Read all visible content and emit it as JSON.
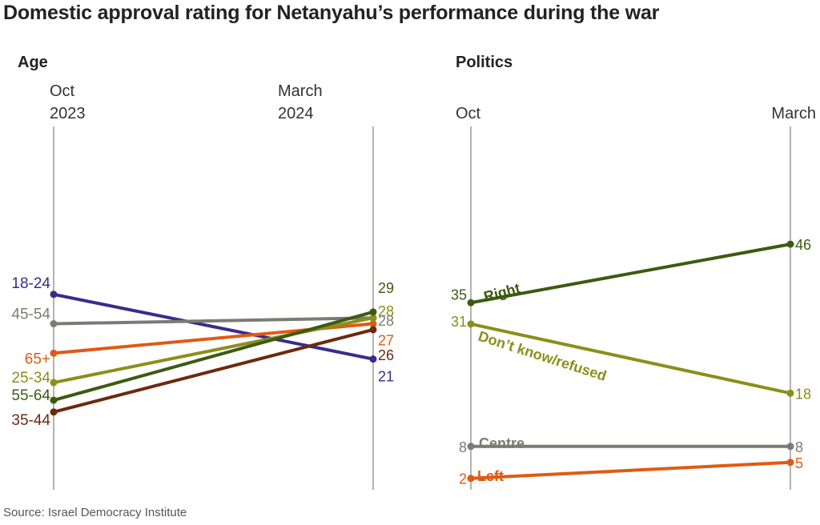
{
  "title": "Domestic approval rating for Netanyahu’s performance during the war",
  "source": "Source: Israel Democracy Institute",
  "chart_data": [
    {
      "type": "line",
      "title": "Age",
      "x": [
        [
          "Oct",
          "2023"
        ],
        [
          "March",
          "2024"
        ]
      ],
      "series": [
        {
          "name": "18-24",
          "values": [
            32,
            21
          ],
          "color": "#3a2b8c"
        },
        {
          "name": "45-54",
          "values": [
            27,
            28
          ],
          "color": "#7b7b72"
        },
        {
          "name": "65+",
          "values": [
            22,
            27
          ],
          "color": "#e05a13"
        },
        {
          "name": "25-34",
          "values": [
            17,
            28
          ],
          "color": "#8a8f1a"
        },
        {
          "name": "55-64",
          "values": [
            14,
            29
          ],
          "color": "#3d5a12"
        },
        {
          "name": "35-44",
          "values": [
            12,
            26
          ],
          "color": "#6b2a0e"
        }
      ],
      "show_start_values": false,
      "show_end_values": true,
      "ylim": [
        -10,
        60
      ]
    },
    {
      "type": "line",
      "title": "Politics",
      "x": [
        [
          "Oct"
        ],
        [
          "March"
        ]
      ],
      "series": [
        {
          "name": "Right",
          "values": [
            35,
            46
          ],
          "color": "#3d5a12"
        },
        {
          "name": "Don’t know/refused",
          "values": [
            31,
            18
          ],
          "color": "#8a8f1a"
        },
        {
          "name": "Centre",
          "values": [
            8,
            8
          ],
          "color": "#7b7b72"
        },
        {
          "name": "Left",
          "values": [
            2,
            5
          ],
          "color": "#e05a13"
        }
      ],
      "show_start_values": true,
      "show_end_values": true,
      "ylim": [
        -3,
        60
      ]
    }
  ]
}
